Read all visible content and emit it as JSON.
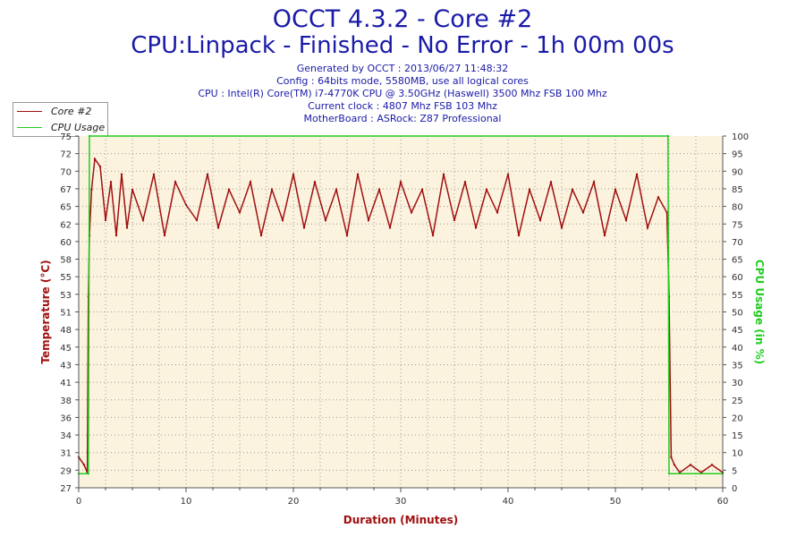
{
  "header": {
    "title": "OCCT 4.3.2 - Core #2",
    "subtitle": "CPU:Linpack - Finished - No Error - 1h 00m 00s",
    "info_lines": [
      "Generated by OCCT : 2013/06/27 11:48:32",
      "Config : 64bits mode, 5580MB, use all logical cores",
      "CPU : Intel(R) Core(TM) i7-4770K CPU @ 3.50GHz (Haswell) 3500 Mhz FSB 100 Mhz",
      "Current clock : 4807 Mhz FSB 103 Mhz",
      "MotherBoard : ASRock: Z87 Professional"
    ]
  },
  "legend": {
    "items": [
      {
        "label": "Core #2",
        "color": "#a01010"
      },
      {
        "label": "CPU Usage",
        "color": "#22cc22"
      }
    ]
  },
  "colors": {
    "plot_background": "#fcf3df",
    "temperature": "#a01010",
    "usage": "#22cc22",
    "title": "#1a1aa8"
  },
  "chart_data": {
    "type": "line",
    "title": "OCCT 4.3.2 - Core #2",
    "subtitle": "CPU:Linpack - Finished - No Error - 1h 00m 00s",
    "xlabel": "Duration (Minutes)",
    "ylabel": "Temperature (°C)",
    "y2label": "CPU Usage (in %)",
    "xlim": [
      0,
      60
    ],
    "ylim": [
      27,
      73
    ],
    "y2lim": [
      0,
      100
    ],
    "x_ticks": [
      0,
      10,
      20,
      30,
      40,
      50,
      60
    ],
    "y_ticks": [
      27,
      29,
      31,
      34,
      36,
      38,
      41,
      43,
      45,
      48,
      51,
      53,
      55,
      58,
      60,
      62,
      65,
      67,
      70,
      72,
      75
    ],
    "y2_ticks": [
      0,
      5,
      10,
      15,
      20,
      25,
      30,
      35,
      40,
      45,
      50,
      55,
      60,
      65,
      70,
      75,
      80,
      85,
      90,
      95,
      100
    ],
    "grid": true,
    "legend_position": "top-left",
    "series": [
      {
        "name": "Core #2",
        "axis": "left",
        "x": [
          0,
          0.5,
          0.8,
          0.9,
          1.0,
          1.2,
          1.5,
          2.0,
          2.5,
          3.0,
          3.5,
          4.0,
          4.5,
          5.0,
          6.0,
          7.0,
          8.0,
          9.0,
          10.0,
          11.0,
          12.0,
          13.0,
          14.0,
          15.0,
          16.0,
          17.0,
          18.0,
          19.0,
          20.0,
          21.0,
          22.0,
          23.0,
          24.0,
          25.0,
          26.0,
          27.0,
          28.0,
          29.0,
          30.0,
          31.0,
          32.0,
          33.0,
          34.0,
          35.0,
          36.0,
          37.0,
          38.0,
          39.0,
          40.0,
          41.0,
          42.0,
          43.0,
          44.0,
          45.0,
          46.0,
          47.0,
          48.0,
          49.0,
          50.0,
          51.0,
          52.0,
          53.0,
          54.0,
          54.8,
          55.0,
          55.2,
          55.5,
          56.0,
          57.0,
          58.0,
          59.0,
          60.0
        ],
        "y": [
          31,
          30,
          29,
          52,
          60,
          66,
          70,
          69,
          62,
          67,
          60,
          68,
          61,
          66,
          62,
          68,
          60,
          67,
          64,
          62,
          68,
          61,
          66,
          63,
          67,
          60,
          66,
          62,
          68,
          61,
          67,
          62,
          66,
          60,
          68,
          62,
          66,
          61,
          67,
          63,
          66,
          60,
          68,
          62,
          67,
          61,
          66,
          63,
          68,
          60,
          66,
          62,
          67,
          61,
          66,
          63,
          67,
          60,
          66,
          62,
          68,
          61,
          65,
          63,
          52,
          31,
          30,
          29,
          30,
          29,
          30,
          29
        ]
      },
      {
        "name": "CPU Usage",
        "axis": "right",
        "x": [
          0,
          0.9,
          1.0,
          54.9,
          55.0,
          60.0
        ],
        "y": [
          4,
          4,
          100,
          100,
          4,
          4
        ]
      }
    ]
  }
}
